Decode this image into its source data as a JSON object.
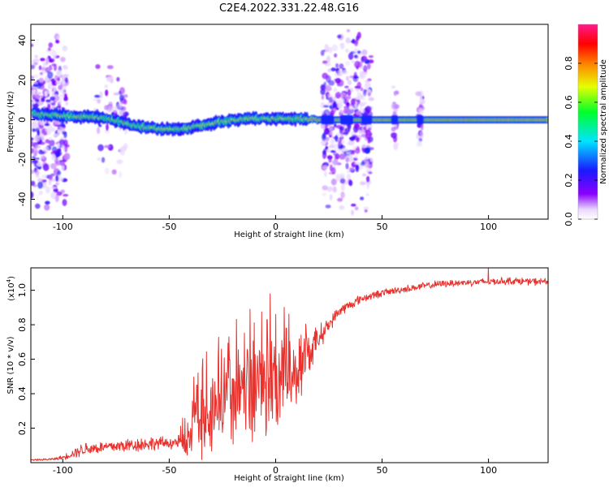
{
  "figure": {
    "title": "C2E4.2022.331.22.48.G16"
  },
  "chart_data": [
    {
      "type": "heatmap",
      "title": "C2E4.2022.331.22.48.G16",
      "xlabel": "Height of straight line (km)",
      "ylabel": "Frequency (Hz)",
      "xlim": [
        -115,
        128
      ],
      "ylim": [
        -50,
        48
      ],
      "xticks": [
        -100,
        -50,
        0,
        50,
        100
      ],
      "xtick_labels": [
        "-100",
        "-50",
        "0",
        "50",
        "100"
      ],
      "yticks": [
        -40,
        -20,
        0,
        20,
        40
      ],
      "ytick_labels": [
        "-40",
        "-20",
        "0",
        "20",
        "40"
      ],
      "colorbar": {
        "label": "Normalized spectral amplitude",
        "range": [
          0,
          1
        ],
        "ticks": [
          0.0,
          0.2,
          0.4,
          0.6,
          0.8
        ],
        "tick_labels": [
          "0.0",
          "0.2",
          "0.4",
          "0.6",
          "0.8"
        ],
        "colormap": "rainbow (white → purple → blue → cyan → green → yellow → red → pink)"
      },
      "signal_ridge": {
        "description": "dominant spectral line",
        "x": [
          -113,
          -100,
          -90,
          -80,
          -70,
          -60,
          -50,
          -40,
          -30,
          -20,
          -10,
          0,
          10,
          20,
          30,
          40,
          50,
          60,
          70,
          80,
          90,
          100,
          110,
          120,
          128
        ],
        "frequency": [
          3,
          2,
          1.5,
          1,
          -2,
          -4,
          -5,
          -4,
          -2,
          0,
          0.5,
          0.5,
          0.5,
          0,
          0,
          0,
          0,
          0,
          0,
          0,
          0,
          0,
          0,
          0,
          0
        ]
      },
      "noise_regions_x": [
        [
          -115,
          -98
        ],
        [
          -85,
          -70
        ],
        [
          22,
          45
        ],
        [
          55,
          57
        ],
        [
          67,
          69
        ]
      ],
      "grid": false
    },
    {
      "type": "line",
      "xlabel": "Height of straight line (km)",
      "ylabel": "SNR (10 * v/v)",
      "scale_note": "(x10^4)",
      "scale_base": "(x10",
      "scale_exp": "4",
      "scale_close": ")",
      "xlim": [
        -115,
        128
      ],
      "ylim": [
        0,
        11300
      ],
      "xticks": [
        -100,
        -50,
        0,
        50,
        100
      ],
      "xtick_labels": [
        "-100",
        "-50",
        "0",
        "50",
        "100"
      ],
      "yticks": [
        2000,
        4000,
        6000,
        8000,
        10000
      ],
      "ytick_labels": [
        "0.2",
        "0.4",
        "0.6",
        "0.8",
        "1.0"
      ],
      "color": "#e8322e",
      "grid": false,
      "series": [
        {
          "x": [
            -115,
            -105,
            -100,
            -90,
            -80,
            -70,
            -60,
            -50,
            -45,
            -40,
            -35,
            -30,
            -25,
            -20,
            -15,
            -10,
            -5,
            0,
            5,
            10,
            15,
            20,
            25,
            30,
            40,
            50,
            60,
            70,
            80,
            90,
            100,
            110,
            120,
            128
          ],
          "y_base": [
            150,
            200,
            300,
            800,
            900,
            1000,
            1100,
            1150,
            1200,
            1400,
            2300,
            3000,
            3400,
            3600,
            3800,
            4000,
            4200,
            4400,
            4700,
            5200,
            6200,
            7200,
            8000,
            8800,
            9500,
            9850,
            10050,
            10250,
            10400,
            10450,
            10500,
            10550,
            10500,
            10500
          ],
          "y_spread": [
            50,
            80,
            150,
            500,
            400,
            500,
            500,
            400,
            500,
            1800,
            2400,
            3000,
            3000,
            3200,
            3000,
            3400,
            3000,
            3200,
            2800,
            2400,
            1600,
            900,
            500,
            400,
            300,
            250,
            250,
            250,
            250,
            250,
            250,
            250,
            250,
            250
          ],
          "peaks": [
            [
              -37,
              4500
            ],
            [
              -27,
              6100
            ],
            [
              -22,
              7300
            ],
            [
              -12,
              8900
            ],
            [
              -4,
              8300
            ],
            [
              0,
              8600
            ],
            [
              5,
              7800
            ],
            [
              100,
              11300
            ]
          ]
        }
      ]
    }
  ]
}
